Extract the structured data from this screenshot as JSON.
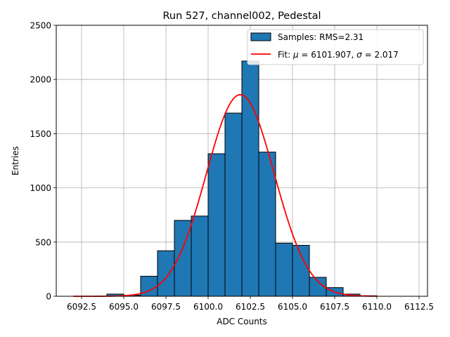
{
  "chart_data": {
    "type": "bar",
    "title": "Run 527, channel002, Pedestal",
    "xlabel": "ADC Counts",
    "ylabel": "Entries",
    "xlim": [
      6091.0,
      6113.0
    ],
    "ylim": [
      0,
      2500
    ],
    "grid": true,
    "legend_position": "top-right",
    "xticks": [
      {
        "value": 6092.5,
        "label": "6092.5"
      },
      {
        "value": 6095.0,
        "label": "6095.0"
      },
      {
        "value": 6097.5,
        "label": "6097.5"
      },
      {
        "value": 6100.0,
        "label": "6100.0"
      },
      {
        "value": 6102.5,
        "label": "6102.5"
      },
      {
        "value": 6105.0,
        "label": "6105.0"
      },
      {
        "value": 6107.5,
        "label": "6107.5"
      },
      {
        "value": 6110.0,
        "label": "6110.0"
      },
      {
        "value": 6112.5,
        "label": "6112.5"
      }
    ],
    "yticks": [
      {
        "value": 0,
        "label": "0"
      },
      {
        "value": 500,
        "label": "500"
      },
      {
        "value": 1000,
        "label": "1000"
      },
      {
        "value": 1500,
        "label": "1500"
      },
      {
        "value": 2000,
        "label": "2000"
      },
      {
        "value": 2500,
        "label": "2500"
      }
    ],
    "series": [
      {
        "name": "Samples: RMS=2.31",
        "kind": "histogram",
        "color": "#1f77b4",
        "edgecolor": "#000000",
        "bins": [
          {
            "left": 6093,
            "right": 6094,
            "value": 0
          },
          {
            "left": 6094,
            "right": 6095,
            "value": 20
          },
          {
            "left": 6095,
            "right": 6096,
            "value": 10
          },
          {
            "left": 6096,
            "right": 6097,
            "value": 185
          },
          {
            "left": 6097,
            "right": 6098,
            "value": 420
          },
          {
            "left": 6098,
            "right": 6099,
            "value": 700
          },
          {
            "left": 6099,
            "right": 6100,
            "value": 740
          },
          {
            "left": 6100,
            "right": 6101,
            "value": 1315
          },
          {
            "left": 6101,
            "right": 6102,
            "value": 1690
          },
          {
            "left": 6102,
            "right": 6103,
            "value": 2170
          },
          {
            "left": 6103,
            "right": 6104,
            "value": 1330
          },
          {
            "left": 6104,
            "right": 6105,
            "value": 490
          },
          {
            "left": 6105,
            "right": 6106,
            "value": 470
          },
          {
            "left": 6106,
            "right": 6107,
            "value": 175
          },
          {
            "left": 6107,
            "right": 6108,
            "value": 80
          },
          {
            "left": 6108,
            "right": 6109,
            "value": 20
          },
          {
            "left": 6109,
            "right": 6110,
            "value": 5
          }
        ]
      },
      {
        "name": "Fit: μ = 6101.907, σ = 2.017",
        "kind": "gaussian",
        "color": "#ff0000",
        "mu": 6101.907,
        "sigma": 2.017,
        "amplitude": 1860,
        "x_range": [
          6092.0,
          6110.0
        ]
      }
    ],
    "legend": [
      {
        "label": "Samples: RMS=2.31",
        "marker": "patch"
      },
      {
        "label": "Fit: ",
        "mu_symbol": "μ",
        "mu_text": " = 6101.907, ",
        "sigma_symbol": "σ",
        "sigma_text": " = 2.017",
        "marker": "line"
      }
    ]
  }
}
